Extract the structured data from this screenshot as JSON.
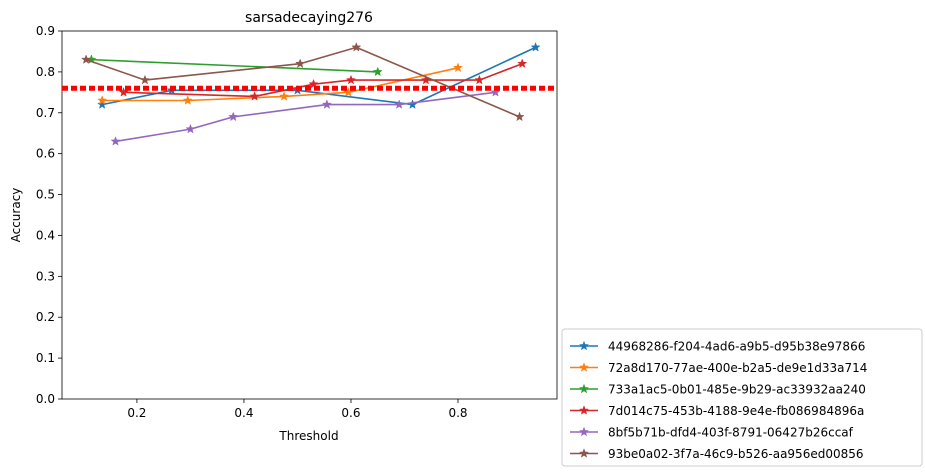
{
  "chart_data": {
    "type": "line",
    "title": "sarsadecaying276",
    "xlabel": "Threshold",
    "ylabel": "Accuracy",
    "xlim": [
      0.06,
      0.985
    ],
    "ylim": [
      0.0,
      0.9
    ],
    "xticks": [
      0.2,
      0.4,
      0.6,
      0.8
    ],
    "xtick_labels": [
      "0.2",
      "0.4",
      "0.6",
      "0.8"
    ],
    "yticks": [
      0.0,
      0.1,
      0.2,
      0.3,
      0.4,
      0.5,
      0.6,
      0.7,
      0.8,
      0.9
    ],
    "ytick_labels": [
      "0.0",
      "0.1",
      "0.2",
      "0.3",
      "0.4",
      "0.5",
      "0.6",
      "0.7",
      "0.8",
      "0.9"
    ],
    "grid": false,
    "legend_position": "outside-lower-right",
    "marker": "star",
    "reference_line": {
      "y": 0.76,
      "style": "dotted",
      "color": "#ff0000"
    },
    "series": [
      {
        "name": "44968286-f204-4ad6-a9b5-d95b38e97866",
        "color": "#1f77b4",
        "x": [
          0.135,
          0.265,
          0.5,
          0.715,
          0.945
        ],
        "y": [
          0.72,
          0.755,
          0.755,
          0.72,
          0.86
        ]
      },
      {
        "name": "72a8d170-77ae-400e-b2a5-de9e1d33a714",
        "color": "#ff7f0e",
        "x": [
          0.135,
          0.295,
          0.475,
          0.595,
          0.8
        ],
        "y": [
          0.73,
          0.73,
          0.74,
          0.75,
          0.81
        ]
      },
      {
        "name": "733a1ac5-0b01-485e-9b29-ac33932aa240",
        "color": "#2ca02c",
        "x": [
          0.115,
          0.65
        ],
        "y": [
          0.83,
          0.8
        ]
      },
      {
        "name": "7d014c75-453b-4188-9e4e-fb086984896a",
        "color": "#d62728",
        "x": [
          0.175,
          0.42,
          0.53,
          0.6,
          0.74,
          0.84,
          0.92
        ],
        "y": [
          0.75,
          0.74,
          0.77,
          0.78,
          0.78,
          0.78,
          0.82
        ]
      },
      {
        "name": "8bf5b71b-dfd4-403f-8791-06427b26ccaf",
        "color": "#9467bd",
        "x": [
          0.16,
          0.3,
          0.38,
          0.555,
          0.69,
          0.87
        ],
        "y": [
          0.63,
          0.66,
          0.69,
          0.72,
          0.72,
          0.75
        ]
      },
      {
        "name": "93be0a02-3f7a-46c9-b526-aa956ed00856",
        "color": "#8c564b",
        "x": [
          0.105,
          0.215,
          0.505,
          0.61,
          0.915
        ],
        "y": [
          0.83,
          0.78,
          0.82,
          0.86,
          0.69
        ]
      }
    ]
  }
}
